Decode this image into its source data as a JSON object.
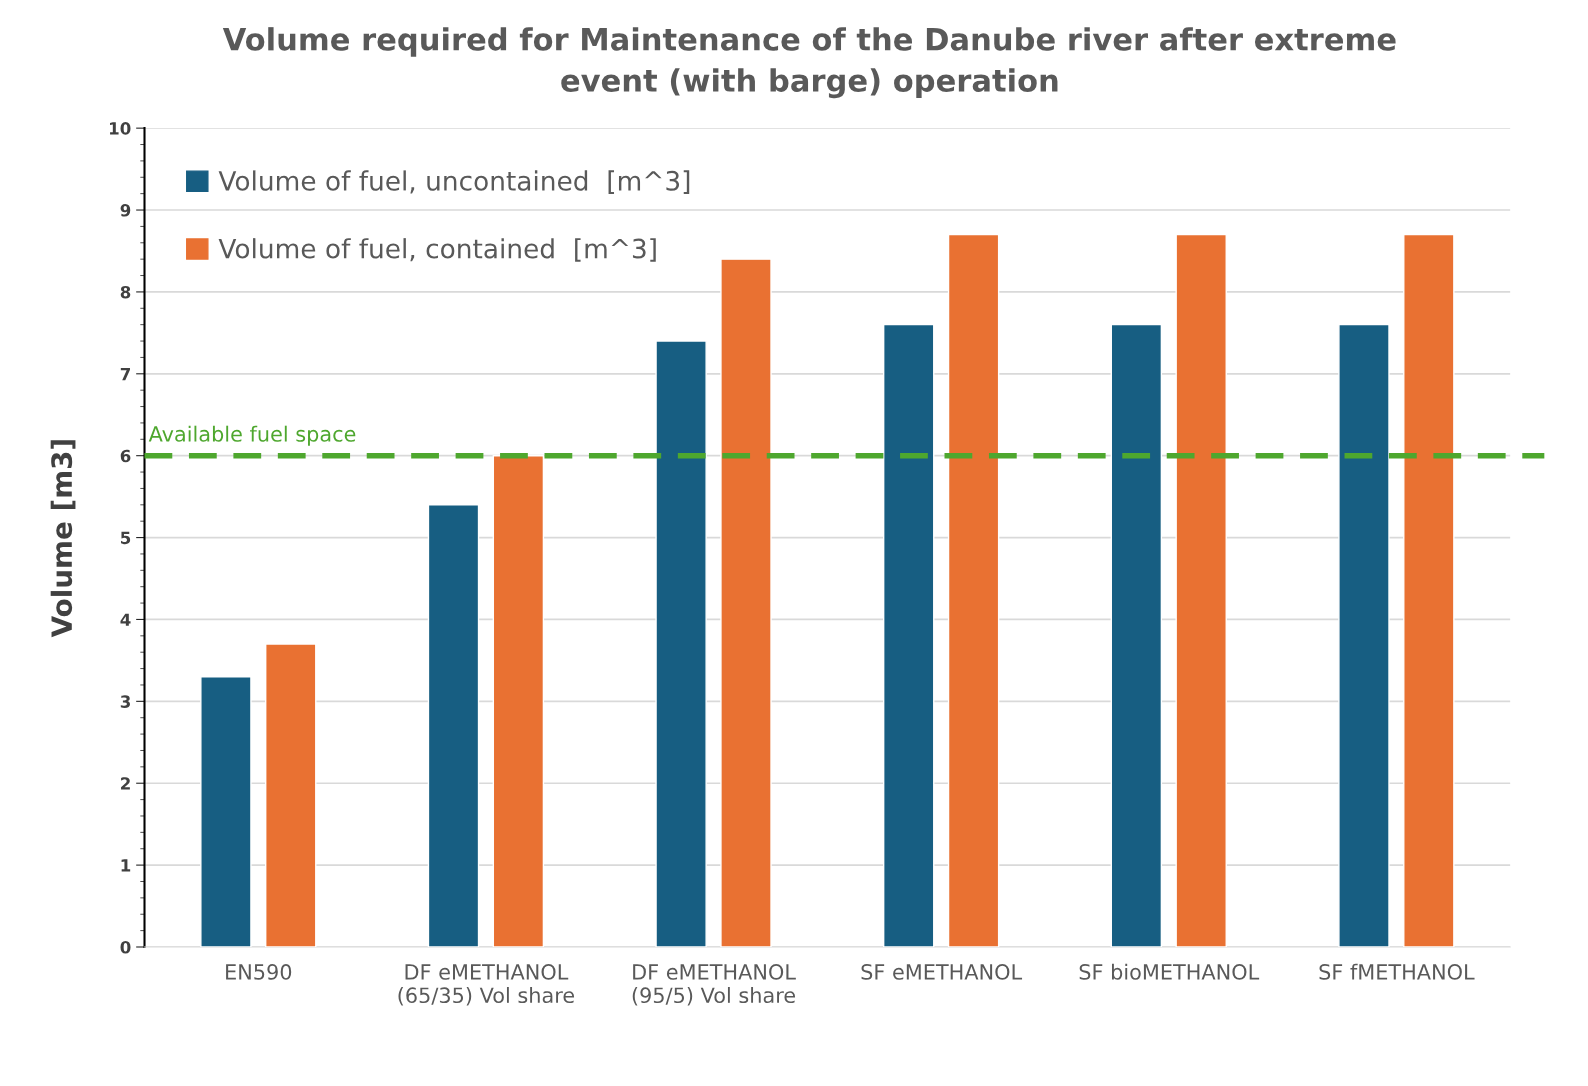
{
  "chart_data": {
    "type": "bar",
    "title": "Volume required for Maintenance of the Danube river after extreme\nevent (with barge) operation",
    "ylabel": "Volume [m3]",
    "categories": [
      "EN590",
      "DF eMETHANOL\n(65/35) Vol share",
      "DF eMETHANOL\n(95/5) Vol share",
      "SF eMETHANOL",
      "SF bioMETHANOL",
      "SF fMETHANOL"
    ],
    "series": [
      {
        "name": "Volume of fuel, uncontained  [m^3]",
        "color": "#175e82",
        "values": [
          3.3,
          5.4,
          7.4,
          7.6,
          7.6,
          7.6
        ]
      },
      {
        "name": "Volume of fuel, contained  [m^3]",
        "color": "#e97132",
        "values": [
          3.7,
          6.0,
          8.4,
          8.7,
          8.7,
          8.7
        ]
      }
    ],
    "ylim": [
      0,
      10
    ],
    "yticks": [
      0,
      1,
      2,
      3,
      4,
      5,
      6,
      7,
      8,
      9,
      10
    ],
    "grid": "y",
    "legend": "top left",
    "ref_lines": [
      {
        "axis": "y",
        "value": 6,
        "label": "Available fuel space",
        "color": "#4ea72e",
        "line_style": "dashed"
      }
    ]
  }
}
